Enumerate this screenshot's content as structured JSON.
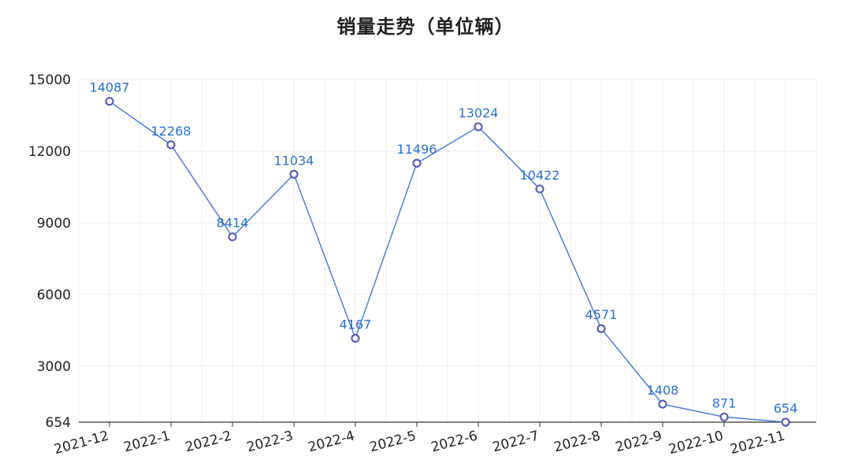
{
  "chart_data": {
    "type": "line",
    "title": "销量走势（单位辆）",
    "categories": [
      "2021-12",
      "2022-1",
      "2022-2",
      "2022-3",
      "2022-4",
      "2022-5",
      "2022-6",
      "2022-7",
      "2022-8",
      "2022-9",
      "2022-10",
      "2022-11"
    ],
    "values": [
      14087,
      12268,
      8414,
      11034,
      4167,
      11496,
      13024,
      10422,
      4571,
      1408,
      871,
      654
    ],
    "yticks": [
      654,
      3000,
      6000,
      9000,
      12000,
      15000
    ],
    "ylim": [
      654,
      15000
    ],
    "grid": true,
    "line_color": "#4a7fd4",
    "marker_color": "#5a5fb0"
  }
}
